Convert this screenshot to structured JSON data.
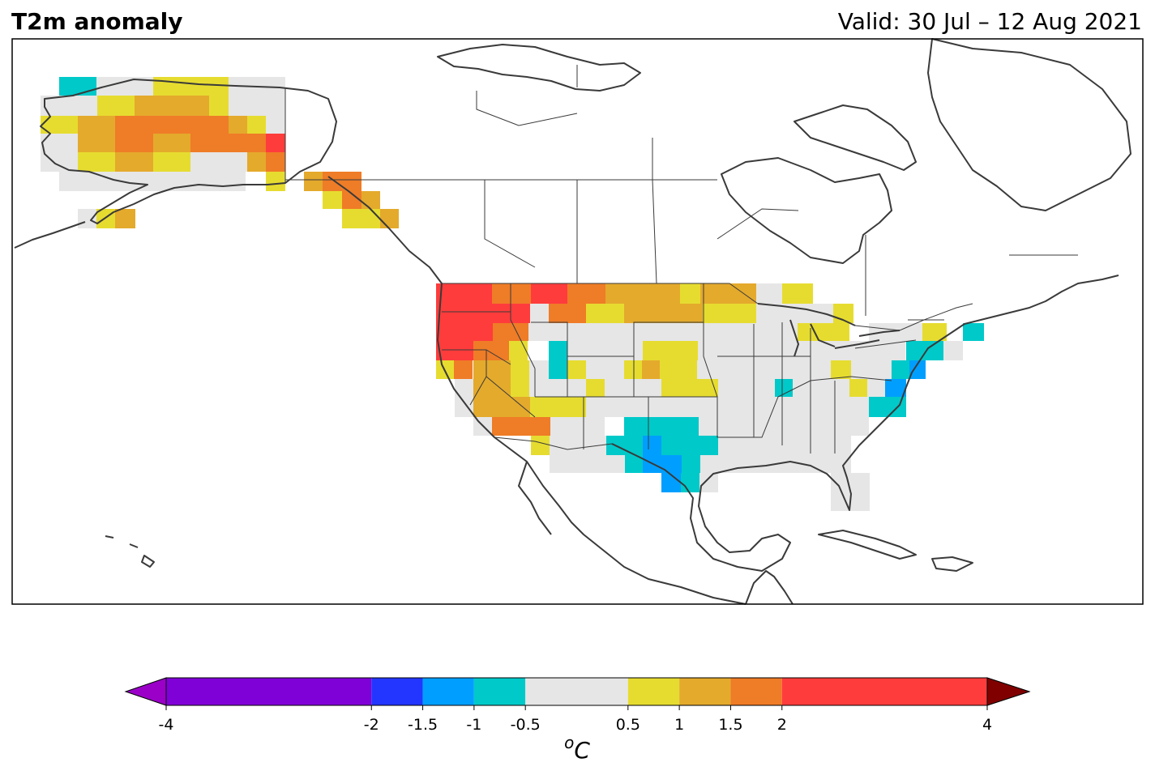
{
  "title": "T2m anomaly",
  "valid": "Valid: 30 Jul – 12 Aug 2021",
  "colorbar": {
    "unit_prefix": "o",
    "unit_main": "C",
    "ticks": [
      "-4",
      "-2",
      "-1.5",
      "-1",
      "-0.5",
      "0.5",
      "1",
      "1.5",
      "2",
      "4"
    ],
    "bounds": [
      -4,
      -2,
      -1.5,
      -1,
      -0.5,
      0.5,
      1,
      1.5,
      2,
      4
    ],
    "colors": [
      "#8000d8",
      "#2336ff",
      "#009fff",
      "#00c9c9",
      "#e6e6e6",
      "#e6dc30",
      "#e4aa2c",
      "#ef7c27",
      "#ff3c3c"
    ],
    "under_color": "#9b00c8",
    "over_color": "#800000"
  },
  "map": {
    "region": "North America",
    "colors": {
      "cyan": "#00c9c9",
      "blue": "#009fff",
      "grey": "#e6e6e6",
      "yellow": "#e6dc30",
      "gold": "#e4aa2c",
      "orange": "#ef7c27",
      "red": "#ff3c3c",
      "coast": "#3a3a3a"
    }
  }
}
